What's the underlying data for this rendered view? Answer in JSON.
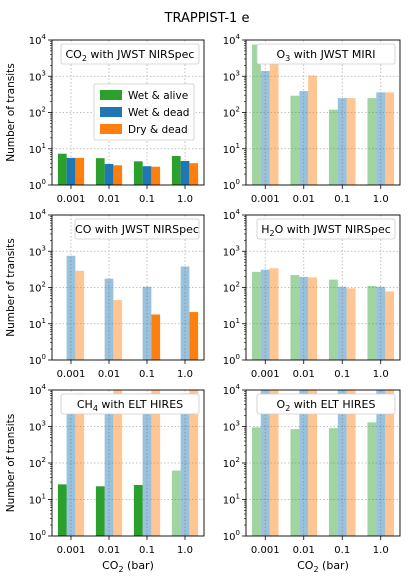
{
  "suptitle": "TRAPPIST-1 e",
  "legend": [
    {
      "label": "Wet & alive",
      "color": "#2ca02c"
    },
    {
      "label": "Wet & dead",
      "color": "#1f77b4"
    },
    {
      "label": "Dry & dead",
      "color": "#ff7f0e"
    }
  ],
  "y_ticks": [
    "10",
    "10",
    "10",
    "10",
    "10"
  ],
  "y_tick_exponents": [
    "0",
    "1",
    "2",
    "3",
    "4"
  ],
  "chart_data": [
    {
      "type": "bar",
      "panel": "top-left",
      "title": "CO",
      "title_sub": "2",
      "title_rest": " with JWST NIRSpec",
      "categories": [
        "0.001",
        "0.01",
        "0.1",
        "1.0"
      ],
      "scale": "log",
      "ylim": [
        1,
        10000
      ],
      "grid": true,
      "legend": "top-center",
      "ylabel": "Number of transits",
      "xlabel": "",
      "faded": false,
      "series": [
        {
          "name": "Wet & alive",
          "values": [
            7.3,
            5.5,
            4.5,
            6.3
          ]
        },
        {
          "name": "Wet & dead",
          "values": [
            5.6,
            3.8,
            3.3,
            4.6
          ]
        },
        {
          "name": "Dry & dead",
          "values": [
            5.6,
            3.5,
            3.2,
            4.0
          ]
        }
      ]
    },
    {
      "type": "bar",
      "panel": "top-right",
      "title": "O",
      "title_sub": "3",
      "title_rest": " with JWST MIRI",
      "categories": [
        "0.001",
        "0.01",
        "0.1",
        "1.0"
      ],
      "scale": "log",
      "ylim": [
        1,
        10000
      ],
      "grid": true,
      "ylabel": "",
      "xlabel": "",
      "faded": true,
      "series": [
        {
          "name": "Wet & alive",
          "values": [
            7500,
            290,
            120,
            250
          ]
        },
        {
          "name": "Wet & dead",
          "values": [
            1400,
            390,
            250,
            360
          ]
        },
        {
          "name": "Dry & dead",
          "values": [
            4600,
            1050,
            250,
            360
          ]
        }
      ]
    },
    {
      "type": "bar",
      "panel": "middle-left",
      "title": "CO with JWST NIRSpec",
      "title_sub": "",
      "title_rest": "",
      "categories": [
        "0.001",
        "0.01",
        "0.1",
        "1.0"
      ],
      "scale": "log",
      "ylim": [
        1,
        10000
      ],
      "grid": true,
      "ylabel": "Number of transits",
      "xlabel": "",
      "series": [
        {
          "name": "Wet & alive",
          "values": [
            null,
            null,
            null,
            null
          ],
          "faded": false
        },
        {
          "name": "Wet & dead",
          "values": [
            750,
            175,
            105,
            380
          ],
          "faded": true
        },
        {
          "name": "Dry & dead",
          "values": [
            290,
            45,
            18,
            21
          ],
          "faded_by_index": [
            true,
            true,
            false,
            false
          ]
        }
      ]
    },
    {
      "type": "bar",
      "panel": "middle-right",
      "title": "H",
      "title_sub": "2",
      "title_rest": "O with JWST NIRSpec",
      "categories": [
        "0.001",
        "0.01",
        "0.1",
        "1.0"
      ],
      "scale": "log",
      "ylim": [
        1,
        10000
      ],
      "grid": true,
      "ylabel": "",
      "xlabel": "",
      "faded": true,
      "series": [
        {
          "name": "Wet & alive",
          "values": [
            270,
            220,
            165,
            110
          ]
        },
        {
          "name": "Wet & dead",
          "values": [
            310,
            195,
            105,
            105
          ]
        },
        {
          "name": "Dry & dead",
          "values": [
            340,
            190,
            95,
            78
          ]
        }
      ]
    },
    {
      "type": "bar",
      "panel": "bottom-left",
      "title": "CH",
      "title_sub": "4",
      "title_rest": " with ELT HIRES",
      "categories": [
        "0.001",
        "0.01",
        "0.1",
        "1.0"
      ],
      "scale": "log",
      "ylim": [
        1,
        10000
      ],
      "grid": true,
      "ylabel": "Number of transits",
      "xlabel": "CO",
      "xlabel_sub": "2",
      "xlabel_rest": " (bar)",
      "series": [
        {
          "name": "Wet & alive",
          "values": [
            26,
            23,
            25,
            62
          ],
          "faded_by_index": [
            false,
            false,
            false,
            true
          ]
        },
        {
          "name": "Wet & dead",
          "values": [
            6500,
            7500,
            8000,
            8000
          ],
          "faded": true
        },
        {
          "name": "Dry & dead",
          "values": [
            8000,
            10000,
            10000,
            10000
          ],
          "faded": true
        }
      ]
    },
    {
      "type": "bar",
      "panel": "bottom-right",
      "title": "O",
      "title_sub": "2",
      "title_rest": " with ELT HIRES",
      "categories": [
        "0.001",
        "0.01",
        "0.1",
        "1.0"
      ],
      "scale": "log",
      "ylim": [
        1,
        10000
      ],
      "grid": true,
      "ylabel": "",
      "xlabel": "CO",
      "xlabel_sub": "2",
      "xlabel_rest": " (bar)",
      "faded": true,
      "series": [
        {
          "name": "Wet & alive",
          "values": [
            950,
            850,
            900,
            1300
          ]
        },
        {
          "name": "Wet & dead",
          "values": [
            10000,
            10000,
            10000,
            10000
          ]
        },
        {
          "name": "Dry & dead",
          "values": [
            10000,
            10000,
            10000,
            10000
          ]
        }
      ]
    }
  ]
}
